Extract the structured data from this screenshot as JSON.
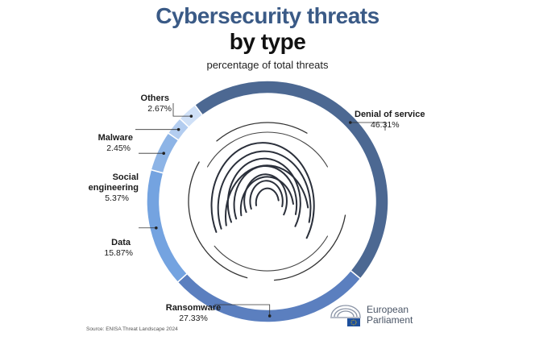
{
  "title_line1": "Cybersecurity threats",
  "title_line2": "by type",
  "subtitle": "percentage of total threats",
  "source": "Source: ENISA Threat Landscape 2024",
  "logo": {
    "line1": "European",
    "line2": "Parliament"
  },
  "colors": {
    "title": "#3a5a86",
    "denial": "#4c6892",
    "ransomware": "#5b7fbf",
    "data": "#74a3e0",
    "social": "#8db4e6",
    "malware": "#b3cdf0",
    "others": "#cfe0f7"
  },
  "chart_data": {
    "type": "pie",
    "title": "Cybersecurity threats by type",
    "subtitle": "percentage of total threats",
    "donut": true,
    "categories": [
      "Denial of service",
      "Ransomware",
      "Data",
      "Social engineering",
      "Malware",
      "Others"
    ],
    "values": [
      46.31,
      27.33,
      15.87,
      5.37,
      2.45,
      2.67
    ],
    "value_labels": [
      "46.31%",
      "27.33%",
      "15.87%",
      "5.37%",
      "2.45%",
      "2.67%"
    ],
    "legend": "none"
  }
}
